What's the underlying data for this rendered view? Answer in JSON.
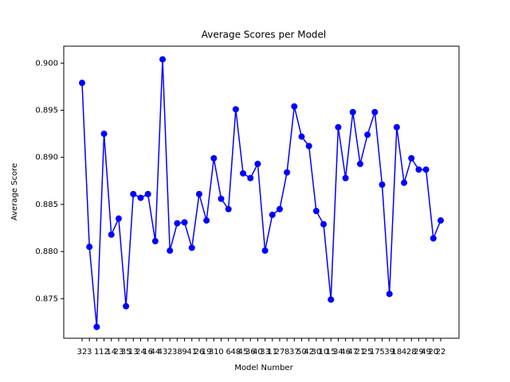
{
  "chart_data": {
    "type": "line",
    "title": "Average Scores per Model",
    "x_label": "Model Number",
    "y_label": "Average Score",
    "categories": [
      "32",
      "3",
      "1",
      "12",
      "14",
      "23",
      "35",
      "13",
      "24",
      "16",
      "44",
      "43",
      "2",
      "38",
      "9",
      "41",
      "26",
      "19",
      "31",
      "0",
      "6",
      "48",
      "45",
      "36",
      "40",
      "33",
      "11",
      "27",
      "8",
      "37",
      "50",
      "42",
      "30",
      "10",
      "15",
      "34",
      "46",
      "47",
      "21",
      "25",
      "17",
      "5",
      "39",
      "18",
      "4",
      "28",
      "29",
      "49",
      "20",
      "22"
    ],
    "series": [
      {
        "name": "Average Score",
        "color": "#0000ff",
        "values": [
          0.8979,
          0.8805,
          0.872,
          0.8925,
          0.8818,
          0.8835,
          0.8742,
          0.8861,
          0.8857,
          0.8861,
          0.8811,
          0.9004,
          0.8801,
          0.883,
          0.8831,
          0.8804,
          0.8861,
          0.8833,
          0.8899,
          0.8856,
          0.8845,
          0.8951,
          0.8883,
          0.8878,
          0.8893,
          0.8801,
          0.8839,
          0.8845,
          0.8884,
          0.8954,
          0.8922,
          0.8912,
          0.8843,
          0.8829,
          0.8749,
          0.8932,
          0.8878,
          0.8948,
          0.8893,
          0.8924,
          0.8948,
          0.8871,
          0.8755,
          0.8932,
          0.8873,
          0.8899,
          0.8887,
          0.8887,
          0.8814,
          0.8833
        ]
      }
    ],
    "ylim": [
      0.8708,
      0.9018
    ],
    "yticks": [
      {
        "value": 0.875,
        "label": "0.875"
      },
      {
        "value": 0.88,
        "label": "0.880"
      },
      {
        "value": 0.885,
        "label": "0.885"
      },
      {
        "value": 0.89,
        "label": "0.890"
      },
      {
        "value": 0.895,
        "label": "0.895"
      },
      {
        "value": 0.9,
        "label": "0.900"
      }
    ],
    "grid": false
  }
}
